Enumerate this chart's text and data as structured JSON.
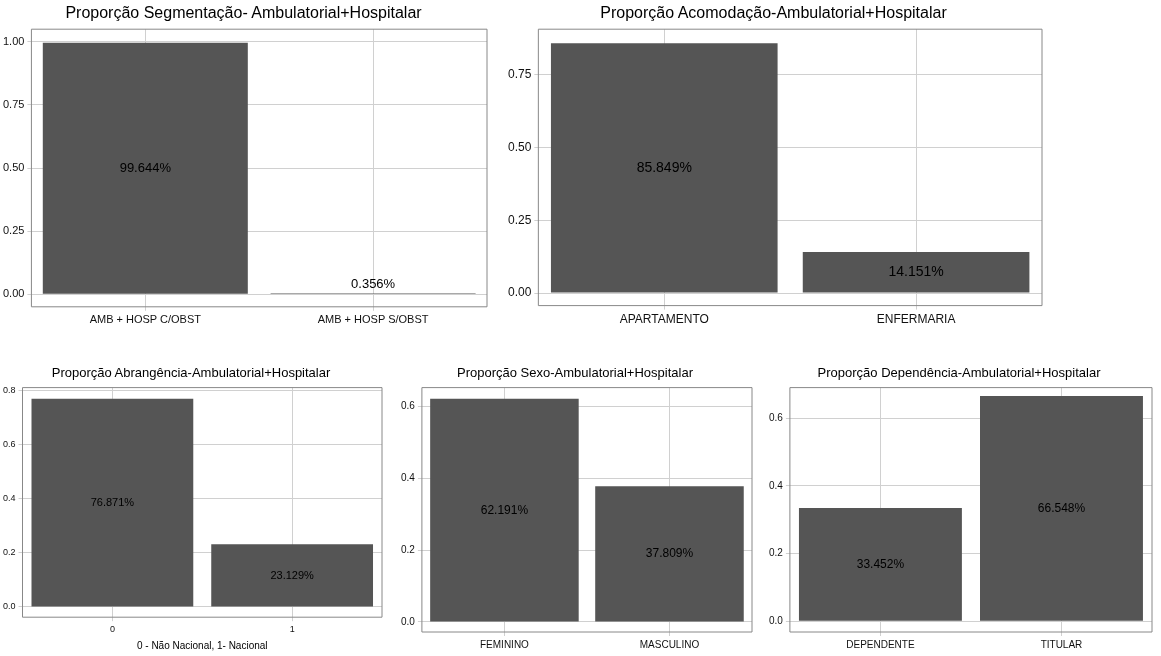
{
  "chart_data": [
    {
      "type": "bar",
      "title": "Proporção Segmentação- Ambulatorial+Hospitalar",
      "categories": [
        "AMB + HOSP C/OBST",
        "AMB + HOSP S/OBST"
      ],
      "values": [
        0.99644,
        0.00356
      ],
      "value_labels": [
        "99.644%",
        "0.356%"
      ],
      "color": "#555555",
      "ylim": [
        -0.05,
        1.05
      ],
      "yticks": [
        {
          "value": 0,
          "label": "0.00"
        },
        {
          "value": 0.25,
          "label": "0.25"
        },
        {
          "value": 0.5,
          "label": "0.50"
        },
        {
          "value": 0.75,
          "label": "0.75"
        },
        {
          "value": 1,
          "label": "1.00"
        }
      ],
      "grid": true,
      "legend": false
    },
    {
      "type": "bar",
      "title": "Proporção Acomodação-Ambulatorial+Hospitalar",
      "categories": [
        "APARTAMENTO",
        "ENFERMARIA"
      ],
      "values": [
        0.85849,
        0.14151
      ],
      "value_labels": [
        "85.849%",
        "14.151%"
      ],
      "color": "#555555",
      "ylim": [
        -0.043,
        0.907
      ],
      "yticks": [
        {
          "value": 0,
          "label": "0.00"
        },
        {
          "value": 0.25,
          "label": "0.25"
        },
        {
          "value": 0.5,
          "label": "0.50"
        },
        {
          "value": 0.75,
          "label": "0.75"
        }
      ],
      "grid": true,
      "legend": false
    },
    {
      "type": "bar",
      "title": "Proporção Abrangência-Ambulatorial+Hospitalar",
      "xlabel": "0 - Não Nacional, 1- Nacional",
      "categories": [
        "0",
        "1"
      ],
      "values": [
        0.76871,
        0.23129
      ],
      "value_labels": [
        "76.871%",
        "23.129%"
      ],
      "color": "#555555",
      "ylim": [
        -0.038,
        0.81
      ],
      "yticks": [
        {
          "value": 0,
          "label": "0.0"
        },
        0.2,
        0.4,
        0.6,
        0.8
      ],
      "grid": true,
      "legend": false
    },
    {
      "type": "bar",
      "title": "Proporção Sexo-Ambulatorial+Hospitalar",
      "categories": [
        "FEMININO",
        "MASCULINO"
      ],
      "values": [
        0.62191,
        0.37809
      ],
      "value_labels": [
        "62.191%",
        "37.809%"
      ],
      "color": "#555555",
      "ylim": [
        -0.028,
        0.653
      ],
      "yticks": [
        {
          "value": 0,
          "label": "0.0"
        },
        0.2,
        0.4,
        0.6
      ],
      "grid": true,
      "legend": false
    },
    {
      "type": "bar",
      "title": "Proporção Dependência-Ambulatorial+Hospitalar",
      "categories": [
        "DEPENDENTE",
        "TITULAR"
      ],
      "values": [
        0.33452,
        0.66548
      ],
      "value_labels": [
        "33.452%",
        "66.548%"
      ],
      "color": "#555555",
      "ylim": [
        -0.032,
        0.69
      ],
      "yticks": [
        {
          "value": 0,
          "label": "0.0"
        },
        0.2,
        0.4,
        0.6
      ],
      "grid": true,
      "legend": false
    }
  ]
}
